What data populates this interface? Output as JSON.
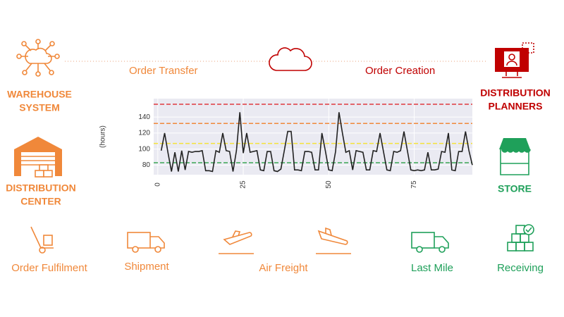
{
  "labels": {
    "order_transfer": "Order Transfer",
    "order_creation": "Order Creation",
    "warehouse_system": [
      "WAREHOUSE",
      "SYSTEM"
    ],
    "distribution_planners": [
      "DISTRIBUTION",
      "PLANNERS"
    ],
    "distribution_center": [
      "DISTRIBUTION",
      "CENTER"
    ],
    "store": "STORE",
    "steps": [
      "Order Fulfilment",
      "Shipment",
      "Air Freight",
      "Last Mile",
      "Receiving"
    ]
  },
  "chart_data": {
    "type": "line",
    "y_label": "(hours)",
    "x": [
      1,
      2,
      3,
      4,
      5,
      6,
      7,
      8,
      9,
      10,
      11,
      12,
      13,
      14,
      15,
      16,
      17,
      18,
      19,
      20,
      21,
      22,
      23,
      24,
      25,
      26,
      27,
      28,
      29,
      30,
      31,
      32,
      33,
      34,
      35,
      36,
      37,
      38,
      39,
      40,
      41,
      42,
      43,
      44,
      45,
      46,
      47,
      48,
      49,
      50,
      51,
      52,
      53,
      54,
      55,
      56,
      57,
      58,
      59,
      60,
      61,
      62,
      63,
      64,
      65,
      66,
      67,
      68,
      69,
      70,
      71,
      72,
      73,
      74,
      75,
      76,
      77,
      78,
      79,
      80,
      81,
      82,
      83,
      84,
      85,
      86,
      87,
      88,
      89,
      90,
      91,
      92
    ],
    "series": [
      {
        "color": "#222222",
        "values": [
          98,
          120,
          95,
          72,
          96,
          72,
          98,
          74,
          97,
          96,
          97,
          97,
          98,
          73,
          73,
          72,
          98,
          96,
          120,
          98,
          97,
          72,
          98,
          146,
          95,
          120,
          96,
          97,
          98,
          74,
          73,
          97,
          97,
          73,
          72,
          75,
          98,
          122,
          122,
          74,
          74,
          73,
          97,
          97,
          96,
          74,
          74,
          120,
          98,
          74,
          73,
          97,
          146,
          120,
          96,
          98,
          74,
          98,
          97,
          96,
          74,
          74,
          98,
          97,
          120,
          97,
          74,
          73,
          97,
          96,
          98,
          122,
          98,
          74,
          73,
          74,
          73,
          74,
          96,
          74,
          74,
          75,
          97,
          96,
          120,
          74,
          73,
          97,
          97,
          122,
          98,
          80
        ]
      }
    ],
    "thresholds": [
      {
        "value": 156,
        "color": "#e0393e"
      },
      {
        "value": 132,
        "color": "#f0883a"
      },
      {
        "value": 107,
        "color": "#f5e23a"
      },
      {
        "value": 83,
        "color": "#3aa655"
      }
    ],
    "xlim": [
      -1.2,
      92
    ],
    "ylim": [
      68,
      163
    ],
    "xticks": [
      0,
      25,
      50,
      75
    ],
    "yticks": [
      80,
      100,
      120,
      140
    ],
    "grid": true
  }
}
